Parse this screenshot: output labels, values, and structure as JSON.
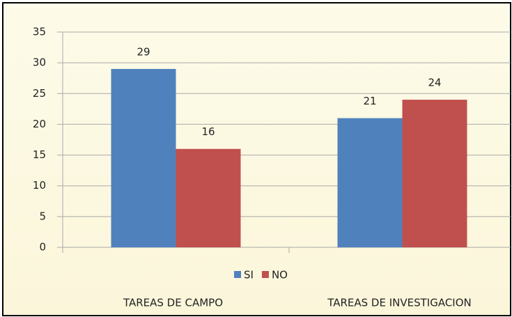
{
  "chart_data": {
    "type": "bar",
    "categories": [
      "TAREAS DE CAMPO",
      "TAREAS DE INVESTIGACION"
    ],
    "series": [
      {
        "name": "SI",
        "color": "#4f81bd",
        "values": [
          29,
          21
        ]
      },
      {
        "name": "NO",
        "color": "#c0504d",
        "values": [
          16,
          24
        ]
      }
    ],
    "ylim": [
      0,
      35
    ],
    "yticks": [
      0,
      5,
      10,
      15,
      20,
      25,
      30,
      35
    ],
    "grid": true,
    "legend": "bottom"
  }
}
